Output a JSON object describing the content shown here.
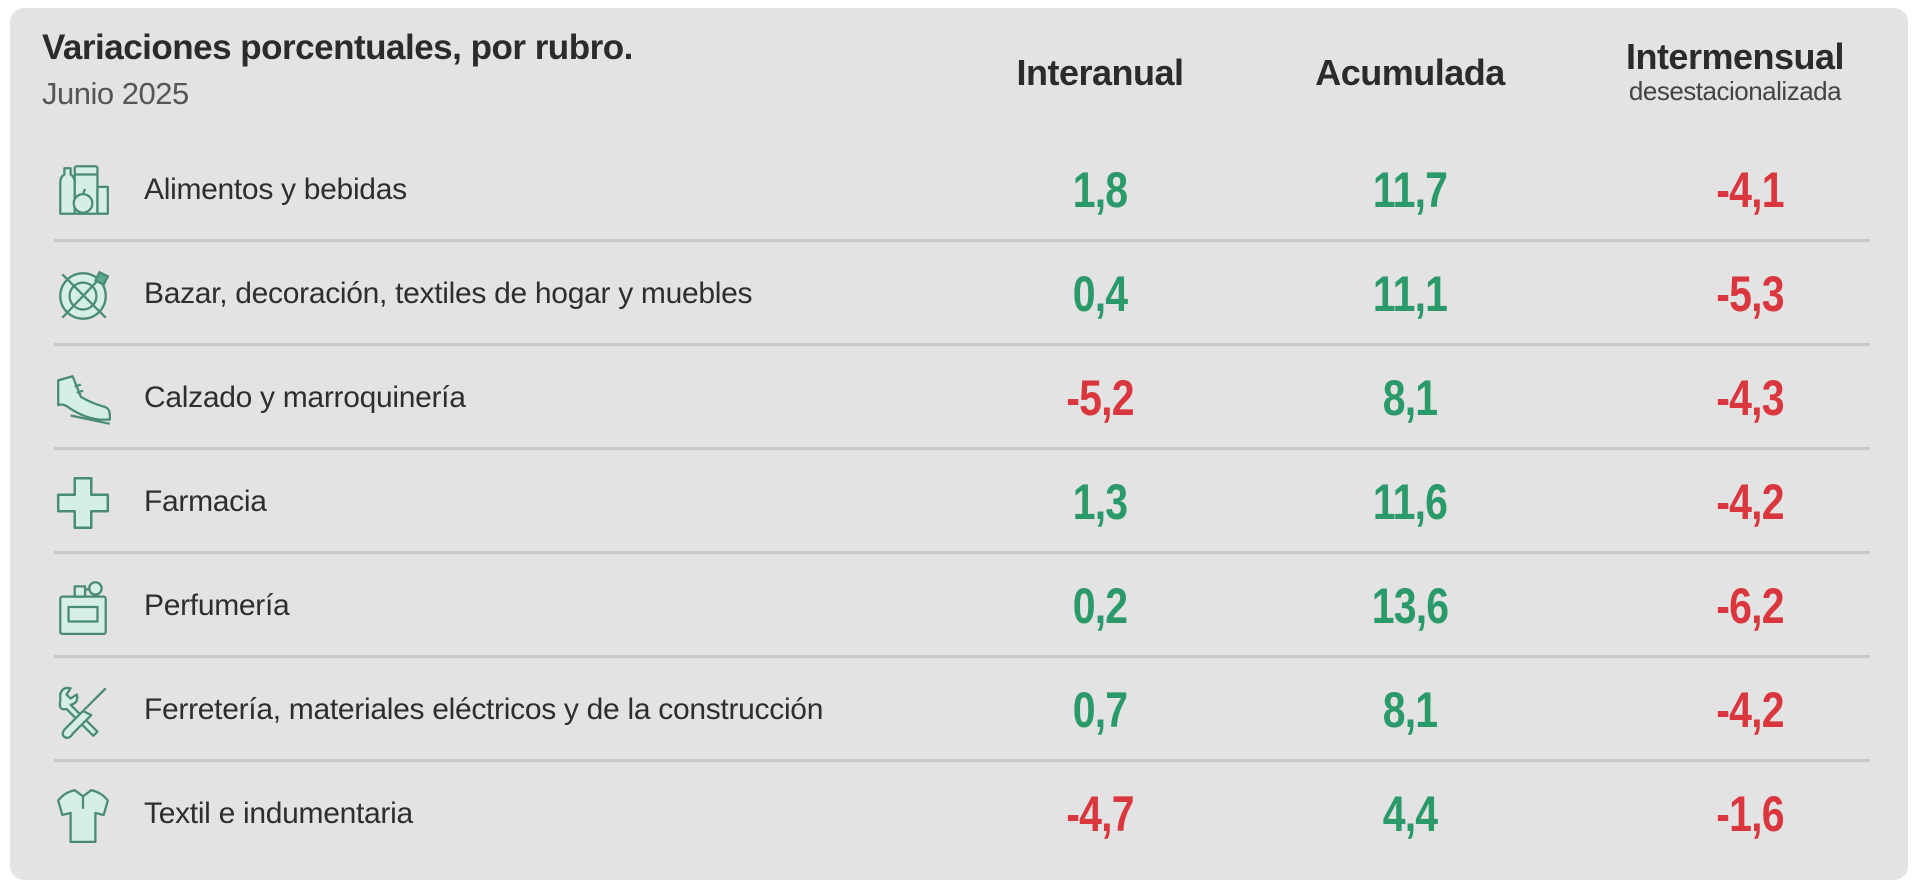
{
  "header": {
    "title": "Variaciones porcentuales, por rubro.",
    "subtitle": "Junio 2025",
    "columns": [
      {
        "label": "Interanual",
        "sublabel": ""
      },
      {
        "label": "Acumulada",
        "sublabel": ""
      },
      {
        "label": "Intermensual",
        "sublabel": "desestacionalizada"
      }
    ]
  },
  "colors": {
    "positive": "#2a9a6a",
    "negative": "#d9363e",
    "icon": "#4a8a78",
    "background": "#e3e3e3"
  },
  "rows": [
    {
      "icon": "groceries-icon",
      "label": "Alimentos y bebidas",
      "interanual": "1,8",
      "acumulada": "11,7",
      "intermensual": "-4,1"
    },
    {
      "icon": "plate-cutlery-icon",
      "label": "Bazar, decoración, textiles de hogar y muebles",
      "interanual": "0,4",
      "acumulada": "11,1",
      "intermensual": "-5,3"
    },
    {
      "icon": "shoe-icon",
      "label": "Calzado y marroquinería",
      "interanual": "-5,2",
      "acumulada": "8,1",
      "intermensual": "-4,3"
    },
    {
      "icon": "pharmacy-cross-icon",
      "label": "Farmacia",
      "interanual": "1,3",
      "acumulada": "11,6",
      "intermensual": "-4,2"
    },
    {
      "icon": "perfume-icon",
      "label": "Perfumería",
      "interanual": "0,2",
      "acumulada": "13,6",
      "intermensual": "-6,2"
    },
    {
      "icon": "tools-icon",
      "label": "Ferretería, materiales eléctricos y de la construcción",
      "interanual": "0,7",
      "acumulada": "8,1",
      "intermensual": "-4,2"
    },
    {
      "icon": "shirt-icon",
      "label": "Textil e indumentaria",
      "interanual": "-4,7",
      "acumulada": "4,4",
      "intermensual": "-1,6"
    }
  ],
  "chart_data": {
    "type": "table",
    "title": "Variaciones porcentuales, por rubro.",
    "subtitle": "Junio 2025",
    "categories": [
      "Alimentos y bebidas",
      "Bazar, decoración, textiles de hogar y muebles",
      "Calzado y marroquinería",
      "Farmacia",
      "Perfumería",
      "Ferretería, materiales eléctricos y de la construcción",
      "Textil e indumentaria"
    ],
    "series": [
      {
        "name": "Interanual",
        "values": [
          1.8,
          0.4,
          -5.2,
          1.3,
          0.2,
          0.7,
          -4.7
        ]
      },
      {
        "name": "Acumulada",
        "values": [
          11.7,
          11.1,
          8.1,
          11.6,
          13.6,
          8.1,
          4.4
        ]
      },
      {
        "name": "Intermensual desestacionalizada",
        "values": [
          -4.1,
          -5.3,
          -4.3,
          -4.2,
          -6.2,
          -4.2,
          -1.6
        ]
      }
    ],
    "color_rule": "positive values green, negative values red"
  }
}
